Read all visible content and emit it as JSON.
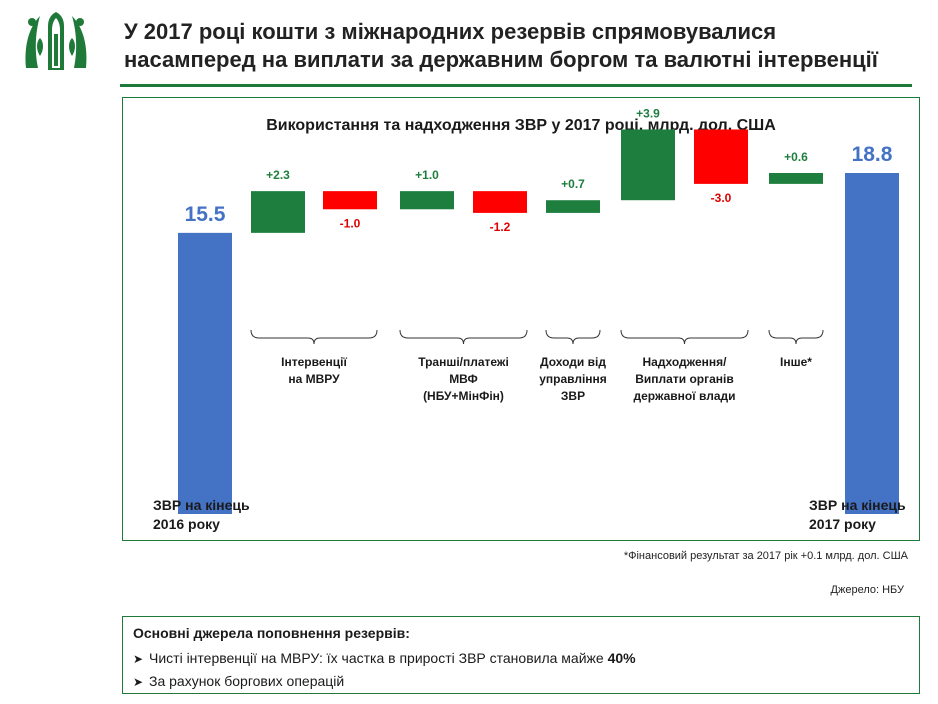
{
  "slide": {
    "title_line1": "У 2017 році кошти з міжнародних резервів спрямовувалися",
    "title_line2": "насамперед на виплати за державним боргом та валютні інтервенції"
  },
  "colors": {
    "brand_green": "#1f7a3a",
    "increase": "#1e7e3e",
    "decrease": "#ff0000",
    "total": "#4472c4",
    "total_label": "#4472c4",
    "increase_label": "#1e7e3e",
    "decrease_label": "#e00000"
  },
  "chart_data": {
    "type": "bar",
    "subtype": "waterfall",
    "title": "Використання та надходження ЗВР у 2017 році, млрд. дол. США",
    "bars": [
      {
        "kind": "total",
        "value": 15.5,
        "label": "15.5"
      },
      {
        "kind": "delta",
        "value": 2.3,
        "label": "+2.3"
      },
      {
        "kind": "delta",
        "value": -1.0,
        "label": "-1.0"
      },
      {
        "kind": "delta",
        "value": 1.0,
        "label": "+1.0"
      },
      {
        "kind": "delta",
        "value": -1.2,
        "label": "-1.2"
      },
      {
        "kind": "delta",
        "value": 0.7,
        "label": "+0.7"
      },
      {
        "kind": "delta",
        "value": 3.9,
        "label": "+3.9"
      },
      {
        "kind": "delta",
        "value": -3.0,
        "label": "-3.0"
      },
      {
        "kind": "delta",
        "value": 0.6,
        "label": "+0.6"
      },
      {
        "kind": "total",
        "value": 18.8,
        "label": "18.8"
      }
    ],
    "groups": [
      {
        "label": "Інтервенції\nна МВРУ",
        "bars": [
          1,
          2
        ]
      },
      {
        "label": "Транші/платежі\nМВФ\n(НБУ+МінФін)",
        "bars": [
          3,
          4
        ]
      },
      {
        "label": "Доходи від\nуправління\nЗВР",
        "bars": [
          5
        ]
      },
      {
        "label": "Надходження/\nВиплати органів\nдержавної влади",
        "bars": [
          6,
          7
        ]
      },
      {
        "label": "Інше*",
        "bars": [
          8
        ]
      }
    ],
    "start_label": "ЗВР на кінець\n2016 року",
    "end_label": "ЗВР на кінець\n2017 року"
  },
  "footnote": "*Фінансовий результат за 2017 рік +0.1 млрд. дол. США",
  "source": "Джерело: НБУ",
  "summary": {
    "title": "Основні джерела поповнення резервів:",
    "item1_text": "Чисті інтервенції на МВРУ: їх частка в прирості ЗВР становила майже ",
    "item1_bold": "40%",
    "item2_text": "За рахунок боргових операцій",
    "bullet_icon": "arrow-bullet-icon"
  }
}
